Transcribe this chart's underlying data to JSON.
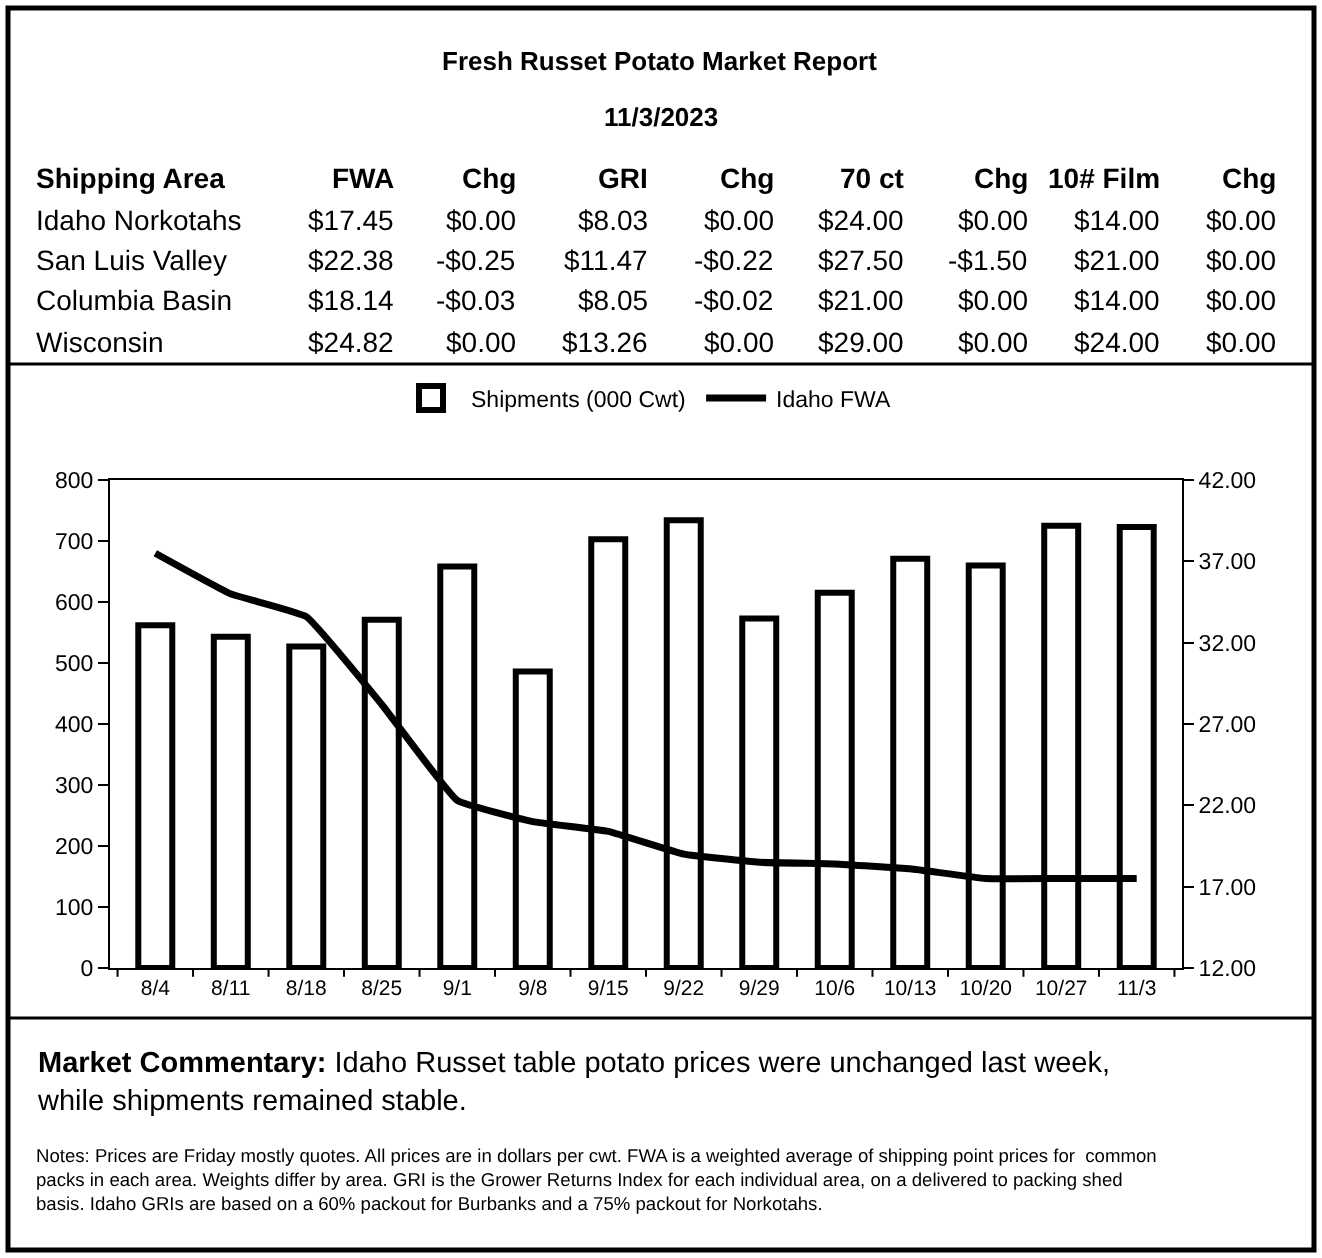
{
  "chart_data": [
    {
      "type": "other",
      "title": "Fresh Russet Potato Market Report",
      "subtitle": "11/3/2023",
      "annotations": [
        "Shipping Area",
        "FWA",
        "Chg",
        "GRI",
        "Chg",
        "70 ct",
        "Chg",
        "10# Film",
        "Chg",
        "Idaho Norkotahs",
        "$17.45",
        "$0.00",
        "$8.03",
        "$0.00",
        "$24.00",
        "$0.00",
        "$14.00",
        "$0.00",
        "San Luis Valley",
        "$22.38",
        "-$0.25",
        "$11.47",
        "-$0.22",
        "$27.50",
        "-$1.50",
        "$21.00",
        "$0.00",
        "Columbia Basin",
        "$18.14",
        "-$0.03",
        "$8.05",
        "-$0.02",
        "$21.00",
        "$0.00",
        "$14.00",
        "$0.00",
        "Wisconsin",
        "$24.82",
        "$0.00",
        "$13.26",
        "$0.00",
        "$29.00",
        "$0.00",
        "$24.00",
        "$0.00"
      ]
    },
    {
      "type": "bar",
      "categories": [
        "8/4",
        "8/11",
        "8/18",
        "8/25",
        "9/1",
        "9/8",
        "9/15",
        "9/22",
        "9/29",
        "10/6",
        "10/13",
        "10/20",
        "10/27",
        "11/3"
      ],
      "series": [
        {
          "name": "Shipments (000 Cwt)",
          "type": "bar",
          "color": "#000000",
          "values": [
            562,
            543,
            527,
            571,
            658,
            486,
            703,
            734,
            573,
            615,
            671,
            660,
            725,
            723
          ]
        },
        {
          "name": "Idaho FWA",
          "type": "line",
          "axis": "y2",
          "color": "#000000",
          "values": [
            37.5,
            35.0,
            33.6,
            28.2,
            22.3,
            21.0,
            20.4,
            19.0,
            18.5,
            18.4,
            18.1,
            17.5,
            17.5,
            17.5
          ]
        }
      ],
      "ylim": [
        0,
        800
      ],
      "yticks": [
        0,
        100,
        200,
        300,
        400,
        500,
        600,
        700,
        800
      ],
      "y2lim": [
        12,
        42
      ],
      "y2ticks": [
        {
          "value": 12,
          "label": "12.00"
        },
        {
          "value": 17,
          "label": "17.00"
        },
        {
          "value": 22,
          "label": "22.00"
        },
        {
          "value": 27,
          "label": "27.00"
        },
        {
          "value": 32,
          "label": "32.00"
        },
        {
          "value": 37,
          "label": "37.00"
        },
        {
          "value": 42,
          "label": "42.00"
        }
      ],
      "legend": "top",
      "marker": "none",
      "line_style": "solid",
      "annotations": [
        "Market Commentary:",
        "Idaho Russet table potato prices were unchanged last week, while shipments remained stable.",
        "Notes: Prices are Friday mostly quotes. All prices are in dollars per cwt. FWA is a weighted average of shipping point prices for  common packs in each area. Weights differ by area. GRI is the Grower Returns Index for each individual area, on a delivered to packing shed basis. Idaho GRIs are based on a 60% packout for Burbanks and a 75% packout for Norkotahs."
      ]
    }
  ]
}
